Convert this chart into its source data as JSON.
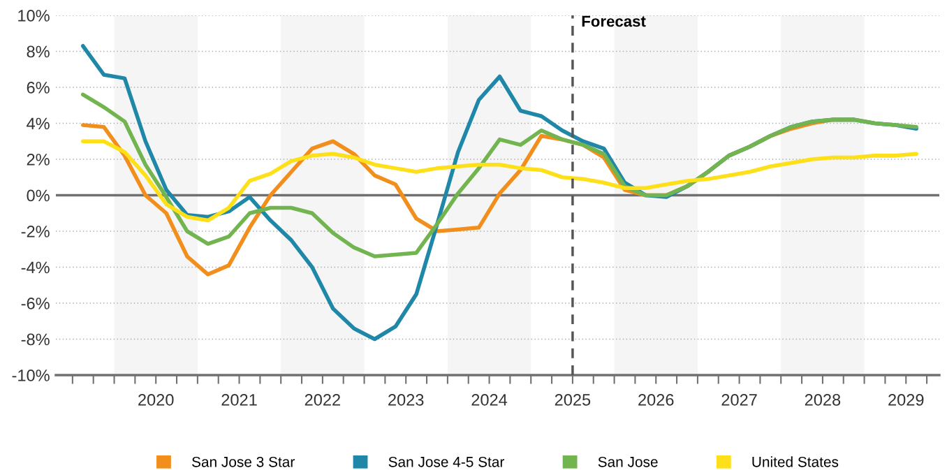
{
  "chart_data": {
    "type": "line",
    "x": [
      2019.625,
      2019.875,
      2020.125,
      2020.375,
      2020.625,
      2020.875,
      2021.125,
      2021.375,
      2021.625,
      2021.875,
      2022.125,
      2022.375,
      2022.625,
      2022.875,
      2023.125,
      2023.375,
      2023.625,
      2023.875,
      2024.125,
      2024.375,
      2024.625,
      2024.875,
      2025.125,
      2025.375,
      2025.625,
      2025.875,
      2026.125,
      2026.375,
      2026.625,
      2026.875,
      2027.125,
      2027.375,
      2027.625,
      2027.875,
      2028.125,
      2028.375,
      2028.625,
      2028.875,
      2029.125,
      2029.375,
      2029.625
    ],
    "series": [
      {
        "name": "San Jose 3 Star",
        "color": "#f28e1c",
        "values": [
          3.9,
          3.8,
          2.2,
          0.0,
          -1.0,
          -3.4,
          -4.4,
          -3.9,
          -1.8,
          0.0,
          1.3,
          2.6,
          3.0,
          2.3,
          1.1,
          0.6,
          -1.3,
          -2.0,
          -1.9,
          -1.8,
          0.1,
          1.4,
          3.3,
          3.1,
          2.8,
          2.1,
          0.3,
          0.0,
          0.0,
          0.5,
          1.3,
          2.2,
          2.7,
          3.3,
          3.7,
          4.0,
          4.2,
          4.2,
          null,
          null,
          null
        ]
      },
      {
        "name": "San Jose 4-5 Star",
        "color": "#1f88a8",
        "values": [
          8.3,
          6.7,
          6.5,
          3.0,
          0.3,
          -1.1,
          -1.2,
          -0.9,
          -0.1,
          -1.4,
          -2.5,
          -4.0,
          -6.3,
          -7.4,
          -8.0,
          -7.3,
          -5.5,
          -1.6,
          2.4,
          5.3,
          6.6,
          4.7,
          4.4,
          3.6,
          3.0,
          2.6,
          0.7,
          0.0,
          -0.1,
          0.5,
          1.3,
          2.2,
          2.7,
          3.3,
          3.8,
          4.1,
          4.2,
          4.2,
          4.0,
          3.9,
          3.7
        ]
      },
      {
        "name": "San Jose",
        "color": "#72b550",
        "values": [
          5.6,
          4.9,
          4.1,
          1.7,
          -0.1,
          -2.0,
          -2.7,
          -2.3,
          -1.0,
          -0.7,
          -0.7,
          -1.0,
          -2.1,
          -2.9,
          -3.4,
          -3.3,
          -3.2,
          -1.6,
          0.1,
          1.5,
          3.1,
          2.8,
          3.6,
          3.1,
          2.8,
          2.3,
          0.5,
          0.0,
          0.0,
          0.5,
          1.3,
          2.2,
          2.7,
          3.3,
          3.8,
          4.1,
          4.2,
          4.2,
          4.0,
          3.9,
          3.8
        ]
      },
      {
        "name": "United States",
        "color": "#fde01a",
        "values": [
          3.0,
          3.0,
          2.4,
          1.1,
          -0.5,
          -1.2,
          -1.4,
          -0.7,
          0.8,
          1.2,
          1.9,
          2.2,
          2.3,
          2.1,
          1.7,
          1.5,
          1.3,
          1.5,
          1.6,
          1.7,
          1.7,
          1.5,
          1.4,
          1.0,
          0.9,
          0.7,
          0.4,
          0.4,
          0.6,
          0.8,
          0.9,
          1.1,
          1.3,
          1.6,
          1.8,
          2.0,
          2.1,
          2.1,
          2.2,
          2.2,
          2.3
        ]
      }
    ],
    "xlim": [
      2019.3,
      2029.9
    ],
    "xticks": [
      {
        "value": 2019.5,
        "label": null
      },
      {
        "value": 2019.75,
        "label": null
      },
      {
        "value": 2020,
        "label": null
      },
      {
        "value": 2020.25,
        "label": null
      },
      {
        "value": 2020.5,
        "label": "2020"
      },
      {
        "value": 2020.75,
        "label": null
      },
      {
        "value": 2021,
        "label": null
      },
      {
        "value": 2021.25,
        "label": null
      },
      {
        "value": 2021.5,
        "label": "2021"
      },
      {
        "value": 2021.75,
        "label": null
      },
      {
        "value": 2022,
        "label": null
      },
      {
        "value": 2022.25,
        "label": null
      },
      {
        "value": 2022.5,
        "label": "2022"
      },
      {
        "value": 2022.75,
        "label": null
      },
      {
        "value": 2023,
        "label": null
      },
      {
        "value": 2023.25,
        "label": null
      },
      {
        "value": 2023.5,
        "label": "2023"
      },
      {
        "value": 2023.75,
        "label": null
      },
      {
        "value": 2024,
        "label": null
      },
      {
        "value": 2024.25,
        "label": null
      },
      {
        "value": 2024.5,
        "label": "2024"
      },
      {
        "value": 2024.75,
        "label": null
      },
      {
        "value": 2025,
        "label": null
      },
      {
        "value": 2025.25,
        "label": null
      },
      {
        "value": 2025.5,
        "label": "2025"
      },
      {
        "value": 2025.75,
        "label": null
      },
      {
        "value": 2026,
        "label": null
      },
      {
        "value": 2026.25,
        "label": null
      },
      {
        "value": 2026.5,
        "label": "2026"
      },
      {
        "value": 2026.75,
        "label": null
      },
      {
        "value": 2027,
        "label": null
      },
      {
        "value": 2027.25,
        "label": null
      },
      {
        "value": 2027.5,
        "label": "2027"
      },
      {
        "value": 2027.75,
        "label": null
      },
      {
        "value": 2028,
        "label": null
      },
      {
        "value": 2028.25,
        "label": null
      },
      {
        "value": 2028.5,
        "label": "2028"
      },
      {
        "value": 2028.75,
        "label": null
      },
      {
        "value": 2029,
        "label": null
      },
      {
        "value": 2029.25,
        "label": null
      },
      {
        "value": 2029.5,
        "label": "2029"
      },
      {
        "value": 2029.75,
        "label": null
      }
    ],
    "ylim": [
      -10,
      10
    ],
    "yticks": [
      {
        "value": -10,
        "label": "-10%"
      },
      {
        "value": -8,
        "label": "-8%"
      },
      {
        "value": -6,
        "label": "-6%"
      },
      {
        "value": -4,
        "label": "-4%"
      },
      {
        "value": -2,
        "label": "-2%"
      },
      {
        "value": 0,
        "label": "0%"
      },
      {
        "value": 2,
        "label": "2%"
      },
      {
        "value": 4,
        "label": "4%"
      },
      {
        "value": 6,
        "label": "6%"
      },
      {
        "value": 8,
        "label": "8%"
      },
      {
        "value": 10,
        "label": "10%"
      }
    ],
    "grid": "y",
    "legend": "bottom",
    "marker": "none",
    "line_style": "solid",
    "ref_lines": [
      {
        "axis": "y",
        "value": 0,
        "label": null,
        "color": "#707070",
        "line_style": "solid"
      },
      {
        "axis": "x",
        "value": 2025.5,
        "label": "Forecast",
        "color": "#555555",
        "line_style": "dashed"
      }
    ],
    "bands": [
      {
        "axis": "x",
        "from": 2020,
        "to": 2021,
        "label": null,
        "color": "#f5f5f5"
      },
      {
        "axis": "x",
        "from": 2022,
        "to": 2023,
        "label": null,
        "color": "#f5f5f5"
      },
      {
        "axis": "x",
        "from": 2024,
        "to": 2025,
        "label": null,
        "color": "#f5f5f5"
      },
      {
        "axis": "x",
        "from": 2026,
        "to": 2027,
        "label": null,
        "color": "#f5f5f5"
      },
      {
        "axis": "x",
        "from": 2028,
        "to": 2029,
        "label": null,
        "color": "#f5f5f5"
      }
    ]
  }
}
